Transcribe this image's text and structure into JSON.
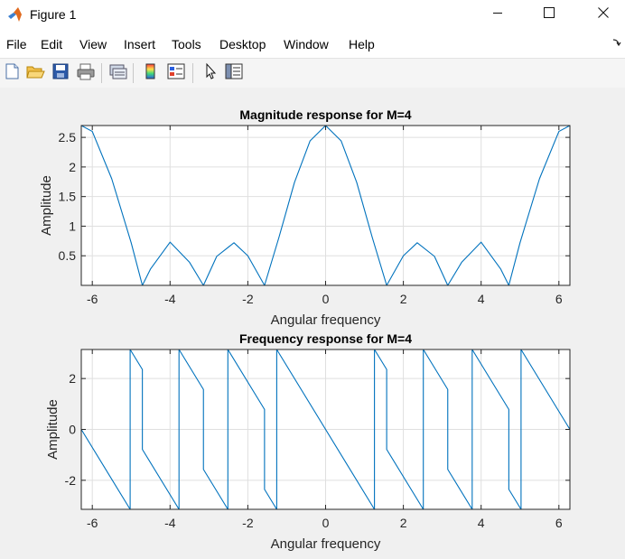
{
  "window": {
    "title": "Figure 1"
  },
  "menu": {
    "items": [
      "File",
      "Edit",
      "View",
      "Insert",
      "Tools",
      "Desktop",
      "Window",
      "Help"
    ]
  },
  "toolbar": {
    "tools": [
      "new-figure-icon",
      "open-file-icon",
      "save-icon",
      "print-icon",
      "link-plot-icon",
      "colorbar-icon",
      "legend-icon",
      "pointer-icon",
      "property-inspector-icon"
    ]
  },
  "colors": {
    "line": "#0072bd",
    "grid": "#dfdfdf",
    "figure_bg": "#f0f0f0"
  },
  "chart_data": [
    {
      "type": "line",
      "title": "Magnitude response for M=4",
      "xlabel": "Angular frequency",
      "ylabel": "Amplitude",
      "xlim": [
        -6.2832,
        6.2832
      ],
      "ylim": [
        0,
        2.7
      ],
      "xticks": [
        -6,
        -4,
        -2,
        0,
        2,
        4,
        6
      ],
      "xtick_labels": [
        "-6",
        "-4",
        "-2",
        "0",
        "2",
        "4",
        "6"
      ],
      "yticks": [
        0.5,
        1,
        1.5,
        2,
        2.5
      ],
      "ytick_labels": [
        "0.5",
        "1",
        "1.5",
        "2",
        "2.5"
      ],
      "grid": true,
      "series": [
        {
          "x": [
            -6.2832,
            -6.0,
            -5.5,
            -5.0,
            -4.7124,
            -4.5,
            -4.0,
            -3.5,
            -3.1416,
            -2.8,
            -2.3562,
            -2.0,
            -1.5708,
            -1.2,
            -0.8,
            -0.4,
            0.0,
            0.4,
            0.8,
            1.2,
            1.5708,
            2.0,
            2.3562,
            2.8,
            3.1416,
            3.5,
            4.0,
            4.5,
            4.7124,
            5.0,
            5.5,
            6.0,
            6.2832
          ],
          "y": [
            2.7,
            2.6,
            1.8,
            0.72,
            0.0,
            0.28,
            0.73,
            0.39,
            0.0,
            0.49,
            0.72,
            0.5,
            0.0,
            0.81,
            1.74,
            2.44,
            2.7,
            2.44,
            1.74,
            0.81,
            0.0,
            0.5,
            0.72,
            0.49,
            0.0,
            0.39,
            0.73,
            0.28,
            0.0,
            0.72,
            1.8,
            2.6,
            2.7
          ]
        }
      ]
    },
    {
      "type": "line",
      "title": "Frequency response for M=4",
      "xlabel": "Angular frequency",
      "ylabel": "Amplitude",
      "xlim": [
        -6.2832,
        6.2832
      ],
      "ylim": [
        -3.1416,
        3.1416
      ],
      "xticks": [
        -6,
        -4,
        -2,
        0,
        2,
        4,
        6
      ],
      "xtick_labels": [
        "-6",
        "-4",
        "-2",
        "0",
        "2",
        "4",
        "6"
      ],
      "yticks": [
        -2,
        0,
        2
      ],
      "ytick_labels": [
        "-2",
        "0",
        "2"
      ],
      "grid": true,
      "series": [
        {
          "x": [
            -6.2832,
            -5.0265,
            -5.0265,
            -4.7124,
            -4.7124,
            -3.7699,
            -3.7699,
            -3.1416,
            -3.1416,
            -2.5133,
            -2.5133,
            -1.5708,
            -1.5708,
            -1.2566,
            -1.2566,
            1.2566,
            1.2566,
            1.5708,
            1.5708,
            2.5133,
            2.5133,
            3.1416,
            3.1416,
            3.7699,
            3.7699,
            4.7124,
            4.7124,
            5.0265,
            5.0265,
            6.2832
          ],
          "y": [
            0.0,
            -3.1416,
            3.1416,
            2.3562,
            -0.7854,
            -3.1416,
            3.1416,
            1.5708,
            -1.5708,
            -3.1416,
            3.1416,
            0.7854,
            -2.3562,
            -3.1416,
            3.1416,
            -3.1416,
            3.1416,
            2.3562,
            -0.7854,
            -3.1416,
            3.1416,
            1.5708,
            -1.5708,
            -3.1416,
            3.1416,
            0.7854,
            -2.3562,
            -3.1416,
            3.1416,
            0.0
          ]
        }
      ]
    }
  ]
}
